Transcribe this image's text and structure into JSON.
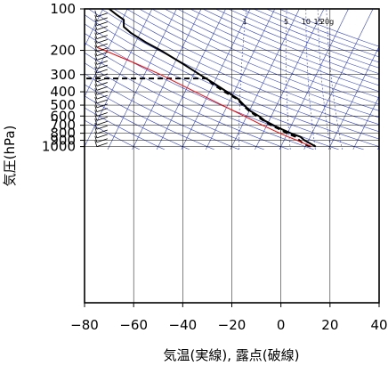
{
  "chart_data": {
    "type": "line",
    "chart_kind": "skew-T log-p thermodynamic diagram",
    "xlabel": "気温(実線), 露点(破線)",
    "ylabel": "気圧(hPa)",
    "xlim": [
      -80,
      40
    ],
    "ylim": [
      1050,
      100
    ],
    "y_scale": "log",
    "x_ticks": [
      -80,
      -60,
      -40,
      -20,
      0,
      20,
      40
    ],
    "x_tick_labels": [
      "−80",
      "−60",
      "−40",
      "−20",
      "0",
      "20",
      "40"
    ],
    "y_ticks": [
      100,
      200,
      300,
      400,
      500,
      600,
      700,
      800,
      900,
      1000
    ],
    "y_tick_labels": [
      "100",
      "200",
      "300",
      "400",
      "500",
      "600",
      "700",
      "800",
      "900",
      "1000"
    ],
    "mixing_ratio_labels": [
      {
        "text": "1",
        "value": 1
      },
      {
        "text": "5",
        "value": 5
      },
      {
        "text": "10",
        "value": 10
      },
      {
        "text": "15",
        "value": 15
      },
      {
        "text": "20g",
        "value": 20
      }
    ],
    "grid": true,
    "colors": {
      "temperature": "#000000",
      "dewpoint": "#000000",
      "parcel": "#ff0000",
      "background_lines": "#3344cc",
      "grid": "#000000"
    },
    "series": [
      {
        "role": "temperature",
        "style": "solid",
        "points": [
          {
            "p": 1000,
            "t": 14.2
          },
          {
            "p": 950,
            "t": 12.0
          },
          {
            "p": 900,
            "t": 9.6
          },
          {
            "p": 850,
            "t": 8.0
          },
          {
            "p": 800,
            "t": 4.0
          },
          {
            "p": 750,
            "t": 0.5
          },
          {
            "p": 700,
            "t": -3.0
          },
          {
            "p": 650,
            "t": -6.5
          },
          {
            "p": 600,
            "t": -9.0
          },
          {
            "p": 550,
            "t": -12.5
          },
          {
            "p": 500,
            "t": -15.0
          },
          {
            "p": 450,
            "t": -17.5
          },
          {
            "p": 400,
            "t": -22.0
          },
          {
            "p": 350,
            "t": -27.0
          },
          {
            "p": 300,
            "t": -33.0
          },
          {
            "p": 250,
            "t": -40.0
          },
          {
            "p": 200,
            "t": -49.0
          },
          {
            "p": 175,
            "t": -55.0
          },
          {
            "p": 150,
            "t": -61.0
          },
          {
            "p": 135,
            "t": -64.0
          },
          {
            "p": 120,
            "t": -64.0
          },
          {
            "p": 110,
            "t": -67.0
          },
          {
            "p": 100,
            "t": -70.0
          }
        ]
      },
      {
        "role": "dewpoint",
        "style": "dashed",
        "points": [
          {
            "p": 1000,
            "t": 12.0
          },
          {
            "p": 950,
            "t": 9.0
          },
          {
            "p": 900,
            "t": 7.5
          },
          {
            "p": 850,
            "t": 6.0
          },
          {
            "p": 800,
            "t": 2.5
          },
          {
            "p": 750,
            "t": -0.5
          },
          {
            "p": 700,
            "t": -4.0
          },
          {
            "p": 650,
            "t": -7.0
          },
          {
            "p": 600,
            "t": -10.0
          },
          {
            "p": 550,
            "t": -13.0
          },
          {
            "p": 500,
            "t": -15.5
          },
          {
            "p": 450,
            "t": -18.0
          },
          {
            "p": 400,
            "t": -23.0
          },
          {
            "p": 350,
            "t": -28.0
          },
          {
            "p": 320,
            "t": -30.0
          },
          {
            "p": 320,
            "t": -80.0
          }
        ]
      },
      {
        "role": "parcel",
        "style": "solid",
        "points": [
          {
            "p": 1000,
            "t": 12.5
          },
          {
            "p": 950,
            "t": 9.5
          },
          {
            "p": 900,
            "t": 6.5
          },
          {
            "p": 850,
            "t": 3.0
          },
          {
            "p": 800,
            "t": -0.5
          },
          {
            "p": 700,
            "t": -7.5
          },
          {
            "p": 600,
            "t": -15.0
          },
          {
            "p": 500,
            "t": -24.0
          },
          {
            "p": 400,
            "t": -35.0
          },
          {
            "p": 300,
            "t": -49.0
          },
          {
            "p": 250,
            "t": -59.0
          },
          {
            "p": 200,
            "t": -72.0
          },
          {
            "p": 190,
            "t": -75.0
          }
        ]
      }
    ],
    "wind_barbs_note": "wind barbs drawn along left edge at x≈-75"
  }
}
